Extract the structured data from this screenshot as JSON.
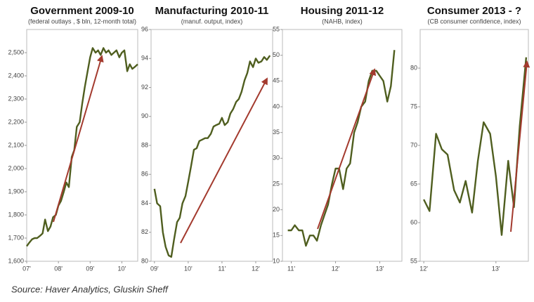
{
  "chart_data": [
    {
      "type": "line",
      "title": "Government 2009-10",
      "subtitle": "(federal outlays , $ bln, 12-month total)",
      "color": "#4f5e1f",
      "x": [
        2007.0,
        2007.08,
        2007.17,
        2007.25,
        2007.33,
        2007.42,
        2007.5,
        2007.58,
        2007.67,
        2007.75,
        2007.83,
        2007.92,
        2008.0,
        2008.08,
        2008.17,
        2008.25,
        2008.33,
        2008.42,
        2008.5,
        2008.58,
        2008.67,
        2008.75,
        2008.83,
        2008.92,
        2009.0,
        2009.08,
        2009.17,
        2009.25,
        2009.33,
        2009.42,
        2009.5,
        2009.58,
        2009.67,
        2009.75,
        2009.83,
        2009.92,
        2010.0,
        2010.08,
        2010.17,
        2010.25,
        2010.33,
        2010.42,
        2010.5
      ],
      "values": [
        1665,
        1680,
        1695,
        1700,
        1700,
        1710,
        1720,
        1780,
        1730,
        1750,
        1790,
        1800,
        1840,
        1860,
        1900,
        1940,
        1920,
        2050,
        2080,
        2180,
        2200,
        2280,
        2350,
        2420,
        2480,
        2520,
        2500,
        2510,
        2490,
        2520,
        2500,
        2510,
        2490,
        2500,
        2510,
        2480,
        2500,
        2510,
        2420,
        2450,
        2430,
        2440,
        2450
      ],
      "xlim": [
        2007,
        2010.5
      ],
      "xticks": [
        {
          "value": 2007,
          "label": "07'"
        },
        {
          "value": 2008,
          "label": "08'"
        },
        {
          "value": 2009,
          "label": "09'"
        },
        {
          "value": 2010,
          "label": "10'"
        }
      ],
      "ylim": [
        1600,
        2600
      ],
      "yticks": [
        {
          "value": 1600,
          "label": "1,600"
        },
        {
          "value": 1700,
          "label": "1,700"
        },
        {
          "value": 1800,
          "label": "1,800"
        },
        {
          "value": 1900,
          "label": "1,900"
        },
        {
          "value": 2000,
          "label": "2,000"
        },
        {
          "value": 2100,
          "label": "2,100"
        },
        {
          "value": 2200,
          "label": "2,200"
        },
        {
          "value": 2300,
          "label": "2,300"
        },
        {
          "value": 2400,
          "label": "2,400"
        },
        {
          "value": 2500,
          "label": "2,500"
        }
      ]
    },
    {
      "type": "line",
      "title": "Manufacturing 2010-11",
      "subtitle": "(manuf. output, index)",
      "color": "#4f5e1f",
      "x": [
        2009.0,
        2009.08,
        2009.17,
        2009.25,
        2009.33,
        2009.42,
        2009.5,
        2009.58,
        2009.67,
        2009.75,
        2009.83,
        2009.92,
        2010.0,
        2010.08,
        2010.17,
        2010.25,
        2010.33,
        2010.42,
        2010.5,
        2010.58,
        2010.67,
        2010.75,
        2010.83,
        2010.92,
        2011.0,
        2011.08,
        2011.17,
        2011.25,
        2011.33,
        2011.42,
        2011.5,
        2011.58,
        2011.67,
        2011.75,
        2011.83,
        2011.92,
        2012.0,
        2012.08,
        2012.17,
        2012.25,
        2012.33,
        2012.42
      ],
      "values": [
        85,
        84,
        83.8,
        82,
        81,
        80.4,
        80.3,
        81.5,
        82.7,
        83,
        84,
        84.5,
        85.5,
        86.5,
        87.7,
        87.8,
        88.3,
        88.4,
        88.5,
        88.5,
        88.8,
        89.3,
        89.4,
        89.5,
        89.9,
        89.4,
        89.6,
        90.2,
        90.5,
        91,
        91.2,
        91.7,
        92.5,
        93,
        93.8,
        93.4,
        94,
        93.7,
        93.8,
        94.1,
        93.9,
        94.2
      ],
      "xlim": [
        2008.9,
        2012.5
      ],
      "xticks": [
        {
          "value": 2009,
          "label": "09'"
        },
        {
          "value": 2010,
          "label": "10'"
        },
        {
          "value": 2011,
          "label": "11'"
        },
        {
          "value": 2012,
          "label": "12'"
        }
      ],
      "ylim": [
        80,
        96
      ],
      "yticks": [
        80,
        82,
        84,
        86,
        88,
        90,
        92,
        94,
        96
      ]
    },
    {
      "type": "line",
      "title": "Housing 2011-12",
      "subtitle": "(NAHB, index)",
      "color": "#4f5e1f",
      "x": [
        2010.92,
        2011.0,
        2011.08,
        2011.17,
        2011.25,
        2011.33,
        2011.42,
        2011.5,
        2011.58,
        2011.67,
        2011.75,
        2011.83,
        2011.92,
        2012.0,
        2012.08,
        2012.17,
        2012.25,
        2012.33,
        2012.42,
        2012.5,
        2012.58,
        2012.67,
        2012.75,
        2012.83,
        2012.92,
        2013.0,
        2013.08,
        2013.17,
        2013.25,
        2013.33
      ],
      "values": [
        16,
        16,
        17,
        16,
        16,
        13,
        15,
        15,
        14,
        17,
        19,
        21,
        25,
        28,
        28,
        24,
        28,
        29,
        35,
        37,
        40,
        41,
        45,
        47,
        47,
        46,
        45,
        41,
        44,
        51
      ],
      "xlim": [
        2010.8,
        2013.5
      ],
      "xticks": [
        {
          "value": 2011,
          "label": "11'"
        },
        {
          "value": 2012,
          "label": "12'"
        },
        {
          "value": 2013,
          "label": "13'"
        }
      ],
      "ylim": [
        10,
        55
      ],
      "yticks": [
        10,
        15,
        20,
        25,
        30,
        35,
        40,
        45,
        50,
        55
      ]
    },
    {
      "type": "line",
      "title": "Consumer 2013 - ?",
      "subtitle": "(CB consumer confidence, index)",
      "color": "#4f5e1f",
      "x": [
        2012.0,
        2012.08,
        2012.17,
        2012.25,
        2012.33,
        2012.42,
        2012.5,
        2012.58,
        2012.67,
        2012.75,
        2012.83,
        2012.92,
        2013.0,
        2013.08,
        2013.17,
        2013.25,
        2013.33,
        2013.42
      ],
      "values": [
        63,
        61.5,
        71.5,
        69.5,
        68.8,
        64.2,
        62.6,
        65.4,
        61.3,
        68,
        73,
        71.5,
        66,
        58.4,
        68,
        62,
        72.5,
        81.4
      ],
      "xlim": [
        2011.95,
        2013.45
      ],
      "xticks": [
        {
          "value": 2012,
          "label": "12'"
        },
        {
          "value": 2013,
          "label": "13'"
        }
      ],
      "ylim": [
        55,
        85
      ],
      "yticks": [
        55,
        60,
        65,
        70,
        75,
        80
      ]
    }
  ],
  "source": "Source: Haver Analytics, Gluskin Sheff"
}
